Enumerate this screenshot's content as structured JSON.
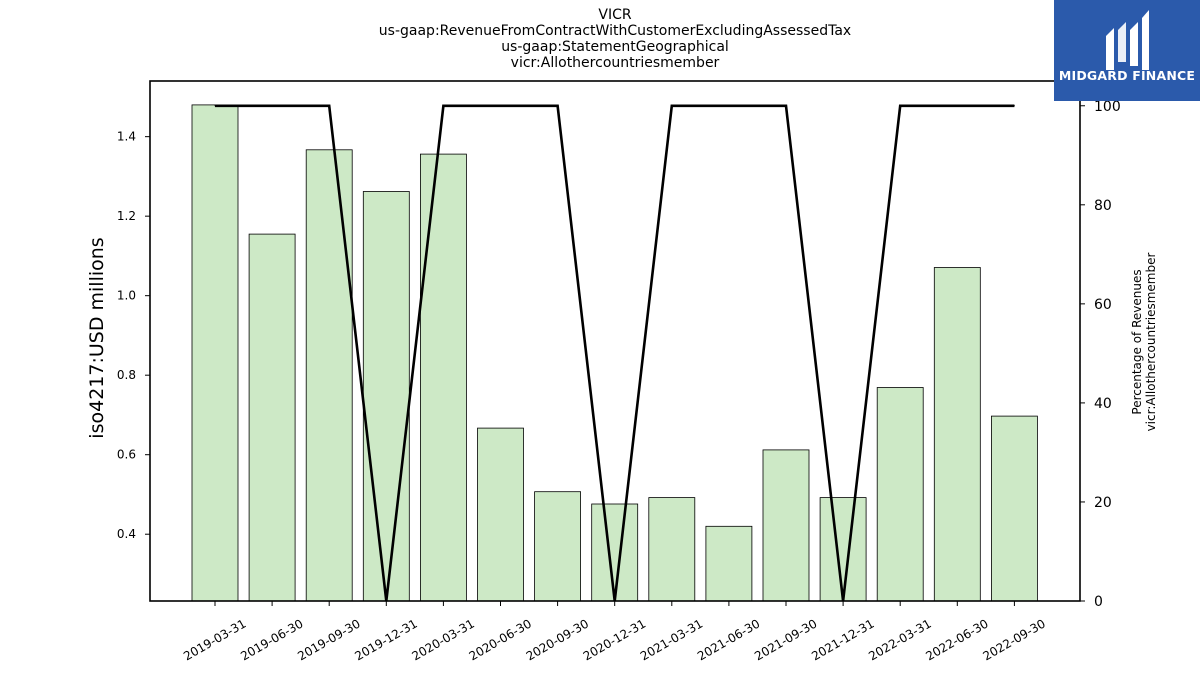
{
  "title_lines": [
    "VICR",
    "us-gaap:RevenueFromContractWithCustomerExcludingAssessedTax",
    "us-gaap:StatementGeographical",
    "vicr:Allothercountriesmember"
  ],
  "logo": {
    "text": "MIDGARD FINANCE",
    "color": "#2b5aab"
  },
  "chart_data": {
    "type": "bar",
    "categories": [
      "2019-03-31",
      "2019-06-30",
      "2019-09-30",
      "2019-12-31",
      "2020-03-31",
      "2020-06-30",
      "2020-09-30",
      "2020-12-31",
      "2021-03-31",
      "2021-06-30",
      "2021-09-30",
      "2021-12-31",
      "2022-03-31",
      "2022-06-30",
      "2022-09-30"
    ],
    "series": [
      {
        "type": "bar",
        "axis": "left",
        "color": "#cde9c6",
        "values": [
          1.48,
          1.155,
          1.367,
          1.262,
          1.356,
          0.667,
          0.507,
          0.476,
          0.492,
          0.42,
          0.612,
          0.492,
          0.769,
          1.071,
          0.697
        ]
      },
      {
        "type": "line",
        "axis": "right",
        "color": "#000000",
        "values": [
          100,
          100,
          100,
          0,
          100,
          100,
          100,
          0,
          100,
          100,
          100,
          0,
          100,
          100,
          100
        ]
      }
    ],
    "ylabel": "iso4217:USD  millions",
    "y2label_lines": [
      "Percentage of Revenues",
      "vicr:Allothercountriesmember"
    ],
    "ylim": [
      0.232,
      1.54
    ],
    "y2lim": [
      0,
      105
    ],
    "yticks": [
      0.4,
      0.6,
      0.8,
      1.0,
      1.2,
      1.4
    ],
    "yticklabels": [
      "0.4",
      "0.6",
      "0.8",
      "1.0",
      "1.2",
      "1.4"
    ],
    "y2ticks": [
      0,
      20,
      40,
      60,
      80,
      100
    ],
    "y2ticklabels": [
      "0",
      "20",
      "40",
      "60",
      "80",
      "100"
    ],
    "grid": false,
    "legend": "none"
  }
}
